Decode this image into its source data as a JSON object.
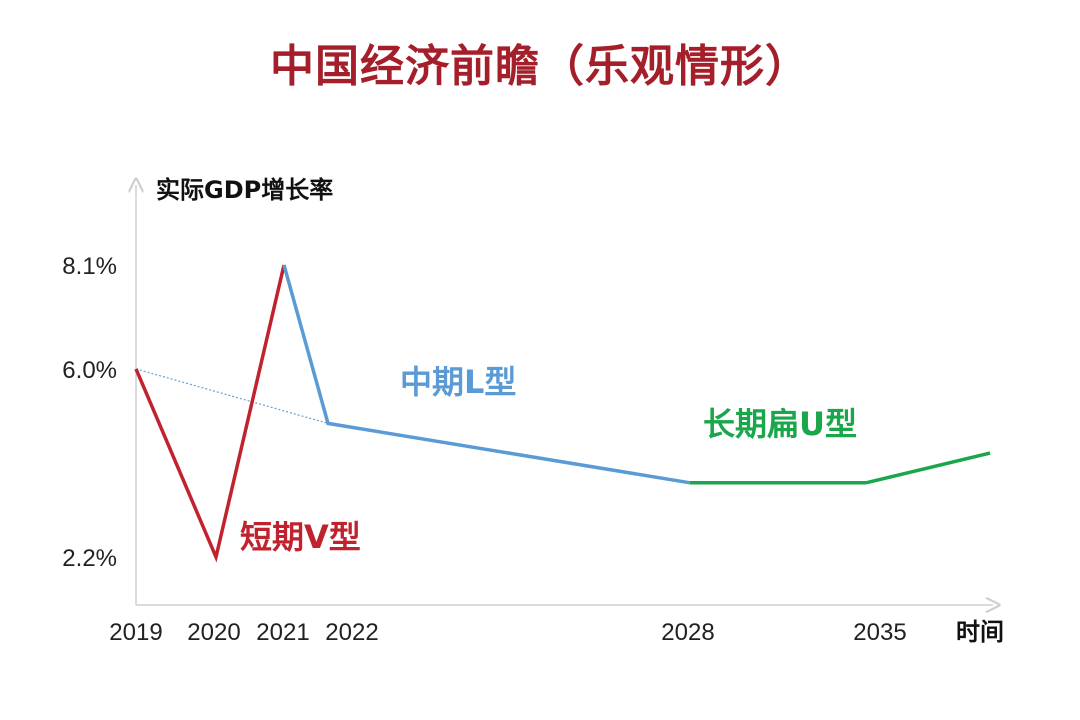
{
  "title": "中国经济前瞻（乐观情形）",
  "colors": {
    "title": "#a51f2b",
    "short_term": "#c0222e",
    "mid_term": "#5b9bd5",
    "long_term": "#1aa64a",
    "trend_dotted": "#6a9fd0",
    "axis": "#cfcfcf"
  },
  "chart_data": {
    "type": "line",
    "title": "中国经济前瞻（乐观情形）",
    "ylabel": "实际GDP增长率",
    "xlabel": "时间",
    "x_ticks": [
      "2019",
      "2020",
      "2021",
      "2022",
      "2028",
      "2035"
    ],
    "y_ticks": [
      "8.1%",
      "6.0%",
      "2.2%"
    ],
    "grid": false,
    "series": [
      {
        "name": "短期V型",
        "color": "#c0222e",
        "points": [
          {
            "x": 2019,
            "y": 6.0
          },
          {
            "x": 2020,
            "y": 2.2
          },
          {
            "x": 2021,
            "y": 8.1
          }
        ]
      },
      {
        "name": "中期L型",
        "color": "#5b9bd5",
        "points": [
          {
            "x": 2021,
            "y": 8.1
          },
          {
            "x": 2022,
            "y": 4.9
          },
          {
            "x": 2028,
            "y": 3.7
          }
        ]
      },
      {
        "name": "长期扁U型",
        "color": "#1aa64a",
        "points": [
          {
            "x": 2028,
            "y": 3.7
          },
          {
            "x": 2035,
            "y": 3.7
          },
          {
            "x": 2037,
            "y": 4.3
          }
        ]
      }
    ],
    "trend_line": {
      "points": [
        {
          "x": 2019,
          "y": 6.0
        },
        {
          "x": 2022,
          "y": 4.9
        }
      ]
    }
  }
}
